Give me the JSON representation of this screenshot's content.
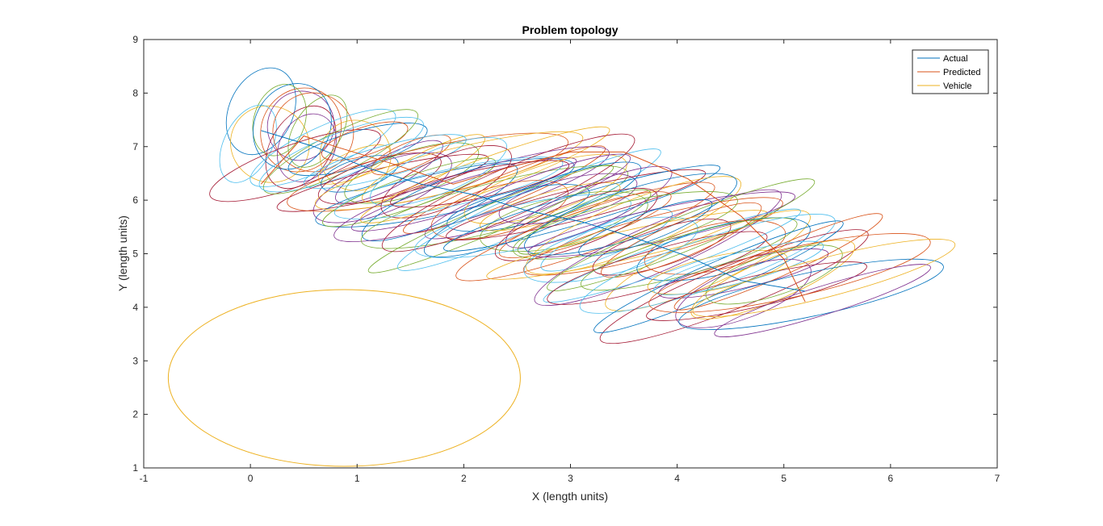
{
  "chart_data": {
    "type": "line",
    "title": "Problem topology",
    "xlabel": "X (length units)",
    "ylabel": "Y (length units)",
    "xlim": [
      -1,
      7
    ],
    "ylim": [
      1,
      9
    ],
    "xticks": [
      "-1",
      "0",
      "1",
      "2",
      "3",
      "4",
      "5",
      "6",
      "7"
    ],
    "yticks": [
      "1",
      "2",
      "3",
      "4",
      "5",
      "6",
      "7",
      "8",
      "9"
    ],
    "grid": false,
    "legend": {
      "placement": "top-right",
      "entries": [
        "Actual",
        "Predicted",
        "Vehicle"
      ]
    },
    "series": [
      {
        "name": "Actual",
        "color": "#0072BD",
        "x": [
          0.1,
          0.6,
          1.1,
          1.6,
          2.1,
          2.6,
          3.1,
          3.6,
          4.1,
          4.6,
          5.2
        ],
        "y": [
          7.3,
          7.0,
          6.6,
          6.3,
          6.1,
          5.8,
          5.6,
          5.3,
          4.95,
          4.5,
          4.3
        ]
      },
      {
        "name": "Predicted",
        "color": "#D95319",
        "x": [
          0.1,
          0.5,
          0.8,
          1.3,
          1.9,
          2.4,
          3.0,
          3.5,
          4.1,
          4.6,
          5.0,
          5.2
        ],
        "y": [
          6.3,
          7.2,
          7.0,
          6.7,
          6.3,
          6.6,
          6.9,
          6.9,
          6.4,
          5.7,
          4.9,
          4.1
        ]
      },
      {
        "name": "Vehicle",
        "color": "#EDB120",
        "shape": "ellipse",
        "center": [
          0.88,
          2.68
        ],
        "radii": [
          1.65,
          1.65
        ]
      }
    ],
    "covariance_ellipse_colors": [
      "#0072BD",
      "#D95319",
      "#EDB120",
      "#7E2F8E",
      "#77AC30",
      "#4DBEEE",
      "#A2142F"
    ]
  }
}
